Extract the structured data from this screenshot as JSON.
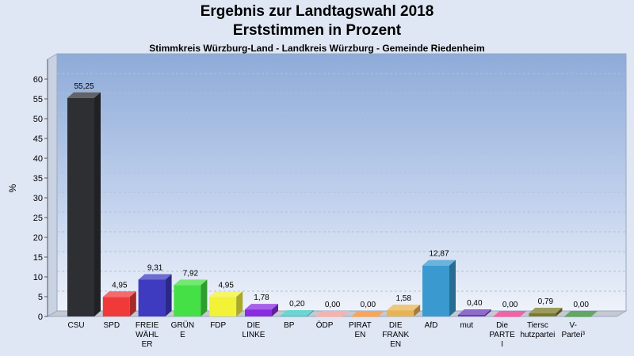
{
  "header": {
    "title_line1": "Ergebnis zur Landtagswahl 2018",
    "title_line2": "Erststimmen in Prozent",
    "subtitle": "Stimmkreis Würzburg-Land - Landkreis Würzburg - Gemeinde Riedenheim"
  },
  "chart_data": {
    "type": "bar",
    "title": "Ergebnis zur Landtagswahl 2018 – Erststimmen in Prozent",
    "subtitle": "Stimmkreis Würzburg-Land - Landkreis Würzburg - Gemeinde Riedenheim",
    "ylabel": "%",
    "xlabel": "",
    "ylim": [
      0,
      60
    ],
    "yticks": [
      "0",
      "5",
      "10",
      "15",
      "20",
      "25",
      "30",
      "35",
      "40",
      "45",
      "50",
      "55",
      "60"
    ],
    "grid": true,
    "categories": [
      {
        "label_lines": [
          "CSU"
        ],
        "value": 55.25,
        "value_label": "55,25",
        "color": "#2e2f33"
      },
      {
        "label_lines": [
          "SPD"
        ],
        "value": 4.95,
        "value_label": "4,95",
        "color": "#f03a3a"
      },
      {
        "label_lines": [
          "FREIE",
          "WÄHL",
          "ER"
        ],
        "value": 9.31,
        "value_label": "9,31",
        "color": "#3e3bc0"
      },
      {
        "label_lines": [
          "GRÜN",
          "E"
        ],
        "value": 7.92,
        "value_label": "7,92",
        "color": "#45e045"
      },
      {
        "label_lines": [
          "FDP"
        ],
        "value": 4.95,
        "value_label": "4,95",
        "color": "#f2f236"
      },
      {
        "label_lines": [
          "DIE",
          "LINKE"
        ],
        "value": 1.78,
        "value_label": "1,78",
        "color": "#8a2be2"
      },
      {
        "label_lines": [
          "BP"
        ],
        "value": 0.2,
        "value_label": "0,20",
        "color": "#3cc8c0"
      },
      {
        "label_lines": [
          "ÖDP"
        ],
        "value": 0.0,
        "value_label": "0,00",
        "color": "#f29a92"
      },
      {
        "label_lines": [
          "PIRAT",
          "EN"
        ],
        "value": 0.0,
        "value_label": "0,00",
        "color": "#f28a2a"
      },
      {
        "label_lines": [
          "DIE",
          "FRANK",
          "EN"
        ],
        "value": 1.58,
        "value_label": "1,58",
        "color": "#e8b452"
      },
      {
        "label_lines": [
          "AfD"
        ],
        "value": 12.87,
        "value_label": "12,87",
        "color": "#3a9ad0"
      },
      {
        "label_lines": [
          "mut"
        ],
        "value": 0.4,
        "value_label": "0,40",
        "color": "#6a3ab8"
      },
      {
        "label_lines": [
          "Die",
          "PARTE",
          "I"
        ],
        "value": 0.0,
        "value_label": "0,00",
        "color": "#e8308a"
      },
      {
        "label_lines": [
          "Tiersc",
          "hutzpartei"
        ],
        "value": 0.79,
        "value_label": "0,79",
        "color": "#7a7a28"
      },
      {
        "label_lines": [
          "V-",
          "Partei³"
        ],
        "value": 0.0,
        "value_label": "0,00",
        "color": "#2e8a2e"
      }
    ]
  }
}
